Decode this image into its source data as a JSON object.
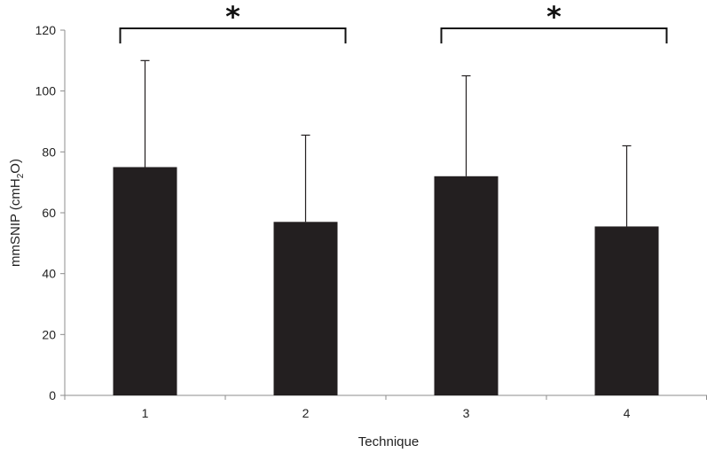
{
  "chart_data": {
    "type": "bar",
    "categories": [
      "1",
      "2",
      "3",
      "4"
    ],
    "values": [
      75,
      57,
      72,
      55.5
    ],
    "error_upper": [
      110,
      85.5,
      105,
      82
    ],
    "xlabel": "Technique",
    "ylabel_main": "mmSNIP (cmH",
    "ylabel_sub": "2",
    "ylabel_end": "O)",
    "ylim": [
      0,
      120
    ],
    "yticks": [
      "0",
      "20",
      "40",
      "60",
      "80",
      "100",
      "120"
    ],
    "grid": false,
    "bar_color": "#231f20",
    "significance": [
      {
        "from": "1",
        "to": "2",
        "label": "*"
      },
      {
        "from": "3",
        "to": "4",
        "label": "*"
      }
    ]
  }
}
